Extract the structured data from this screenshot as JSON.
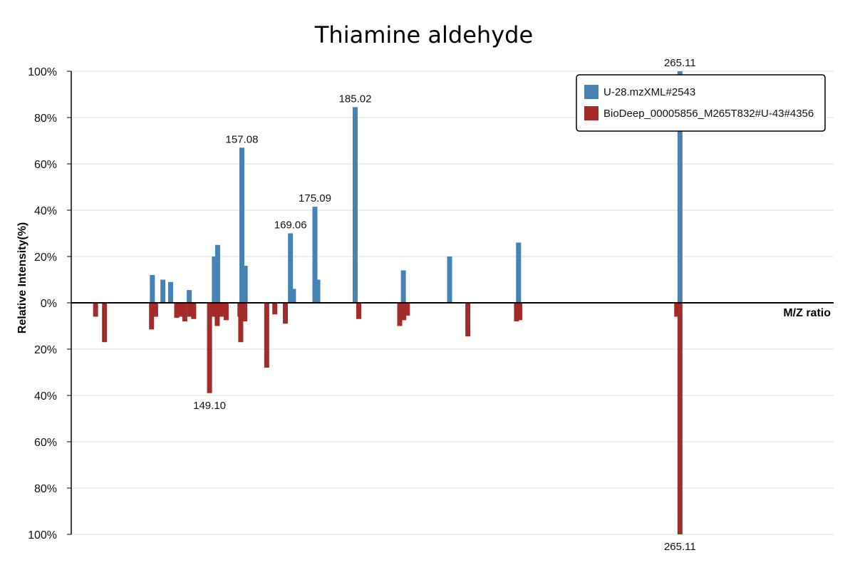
{
  "chart_data": {
    "type": "bar",
    "title": "Thiamine aldehyde",
    "xlabel": "M/Z ratio",
    "ylabel": "Relative Intensity(%)",
    "xlim": [
      115,
      303
    ],
    "ylim": [
      -100,
      100
    ],
    "y_ticks": [
      {
        "value": 100,
        "label": "100%"
      },
      {
        "value": 80,
        "label": "80%"
      },
      {
        "value": 60,
        "label": "60%"
      },
      {
        "value": 40,
        "label": "40%"
      },
      {
        "value": 20,
        "label": "20%"
      },
      {
        "value": 0,
        "label": "0%"
      },
      {
        "value": -20,
        "label": "20%"
      },
      {
        "value": -40,
        "label": "40%"
      },
      {
        "value": -60,
        "label": "60%"
      },
      {
        "value": -80,
        "label": "80%"
      },
      {
        "value": -100,
        "label": "100%"
      }
    ],
    "grid": true,
    "legend_position": "top-right",
    "series": [
      {
        "name": "U-28.mzXML#2543",
        "color": "#4682b4",
        "direction": "up",
        "points": [
          {
            "mz": 135.0,
            "value": 12
          },
          {
            "mz": 137.6,
            "value": 10
          },
          {
            "mz": 139.5,
            "value": 9
          },
          {
            "mz": 144.1,
            "value": 5.5
          },
          {
            "mz": 150.3,
            "value": 20
          },
          {
            "mz": 151.1,
            "value": 25
          },
          {
            "mz": 157.08,
            "value": 67,
            "label": "157.08"
          },
          {
            "mz": 157.9,
            "value": 16
          },
          {
            "mz": 169.06,
            "value": 30,
            "label": "169.06"
          },
          {
            "mz": 169.8,
            "value": 6
          },
          {
            "mz": 175.09,
            "value": 41.5,
            "label": "175.09"
          },
          {
            "mz": 175.8,
            "value": 10
          },
          {
            "mz": 185.02,
            "value": 84.5,
            "label": "185.02"
          },
          {
            "mz": 196.9,
            "value": 14
          },
          {
            "mz": 208.3,
            "value": 20
          },
          {
            "mz": 225.3,
            "value": 26
          },
          {
            "mz": 265.11,
            "value": 100,
            "label": "265.11"
          }
        ]
      },
      {
        "name": "BioDeep_00005856_M265T832#U-43#4356",
        "color": "#a52a2a",
        "direction": "down",
        "points": [
          {
            "mz": 121.0,
            "value": 6
          },
          {
            "mz": 123.2,
            "value": 17
          },
          {
            "mz": 134.8,
            "value": 11.5
          },
          {
            "mz": 135.8,
            "value": 6
          },
          {
            "mz": 141.0,
            "value": 6.5
          },
          {
            "mz": 142.0,
            "value": 6
          },
          {
            "mz": 143.0,
            "value": 8
          },
          {
            "mz": 144.2,
            "value": 6
          },
          {
            "mz": 145.2,
            "value": 7
          },
          {
            "mz": 149.8,
            "value": 5.5
          },
          {
            "mz": 151.0,
            "value": 10
          },
          {
            "mz": 152.1,
            "value": 6
          },
          {
            "mz": 153.2,
            "value": 7.5
          },
          {
            "mz": 156.8,
            "value": 17
          },
          {
            "mz": 157.8,
            "value": 8
          },
          {
            "mz": 163.2,
            "value": 28
          },
          {
            "mz": 165.2,
            "value": 5
          },
          {
            "mz": 167.8,
            "value": 9
          },
          {
            "mz": 149.1,
            "value": 39,
            "label": "149.10"
          },
          {
            "mz": 150.1,
            "value": 6
          },
          {
            "mz": 156.6,
            "value": 6
          },
          {
            "mz": 157.6,
            "value": 6
          },
          {
            "mz": 185.9,
            "value": 7
          },
          {
            "mz": 196.0,
            "value": 10
          },
          {
            "mz": 197.0,
            "value": 7.5
          },
          {
            "mz": 197.9,
            "value": 5.5
          },
          {
            "mz": 212.8,
            "value": 14.5
          },
          {
            "mz": 224.8,
            "value": 8
          },
          {
            "mz": 225.6,
            "value": 7.5
          },
          {
            "mz": 264.3,
            "value": 6
          },
          {
            "mz": 265.11,
            "value": 100,
            "label": "265.11"
          }
        ]
      }
    ]
  }
}
